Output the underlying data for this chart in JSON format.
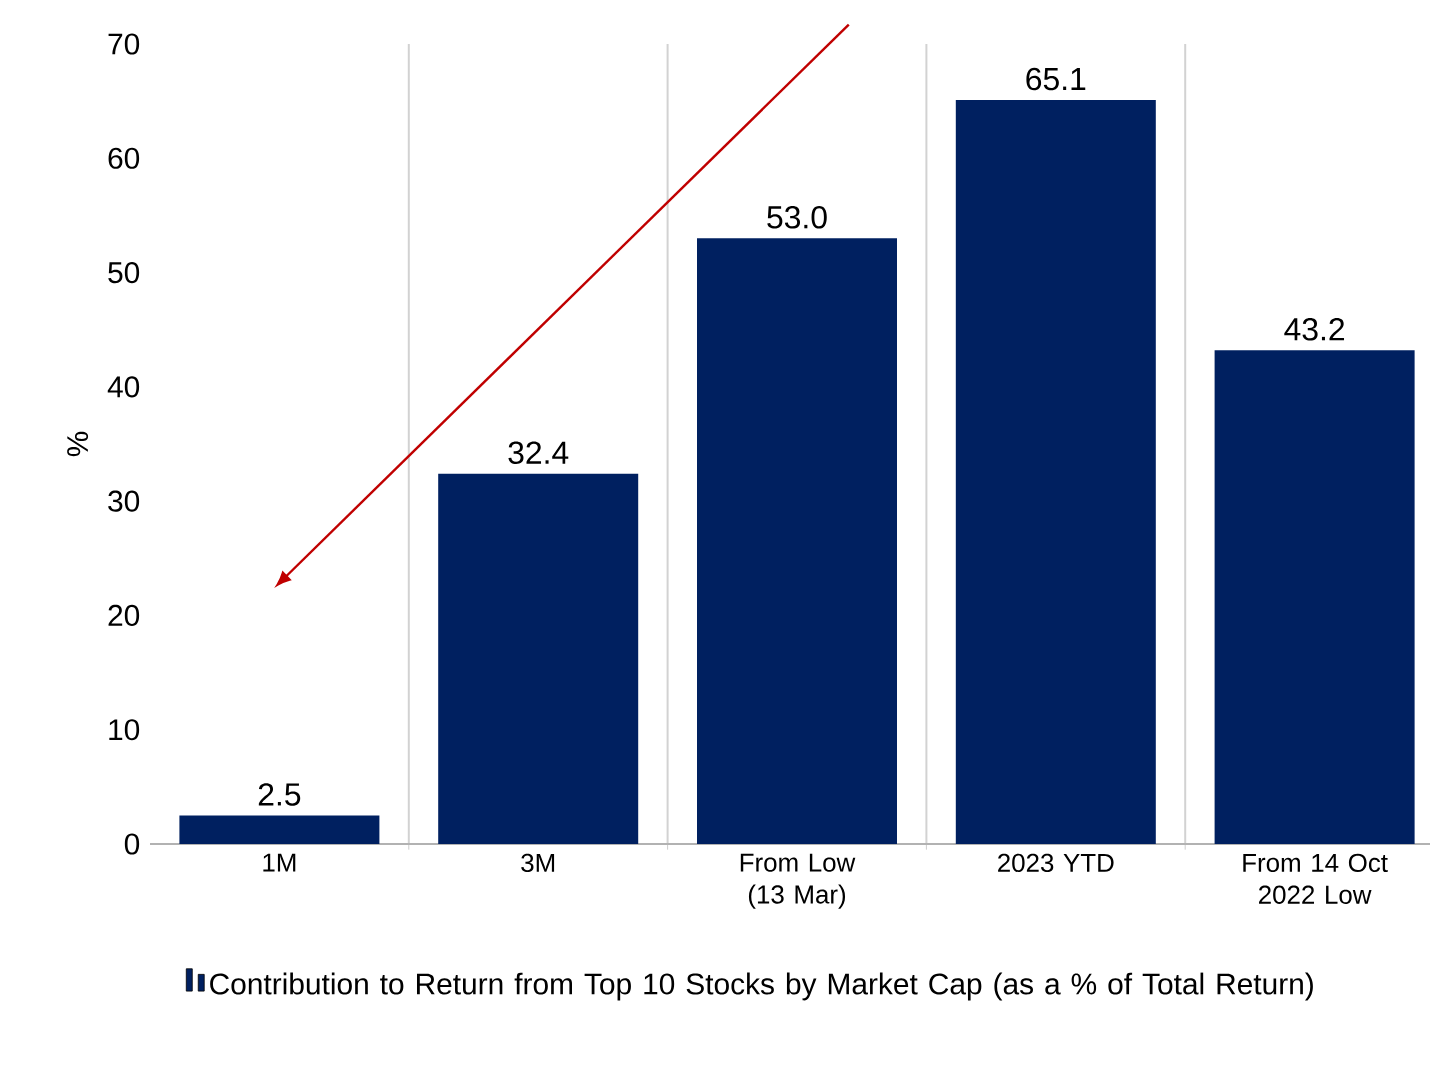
{
  "chart_data": {
    "type": "bar",
    "categories": [
      "1M",
      "3M",
      "From Low (13 Mar)",
      "2023 YTD",
      "From 14 Oct 2022 Low"
    ],
    "series": [
      {
        "name": "Contribution to Return from Top 10 Stocks by Market Cap (as a % of Total Return)",
        "color": "#002060",
        "values": [
          2.5,
          32.4,
          53.0,
          65.1,
          43.2
        ]
      }
    ],
    "value_labels": [
      "2.5",
      "32.4",
      "53.0",
      "65.1",
      "43.2"
    ],
    "ylabel": "%",
    "ylim": [
      0,
      70
    ],
    "yticks": [
      0,
      10,
      20,
      30,
      40,
      50,
      60,
      70
    ],
    "grid": "x",
    "legend": "bottom"
  }
}
